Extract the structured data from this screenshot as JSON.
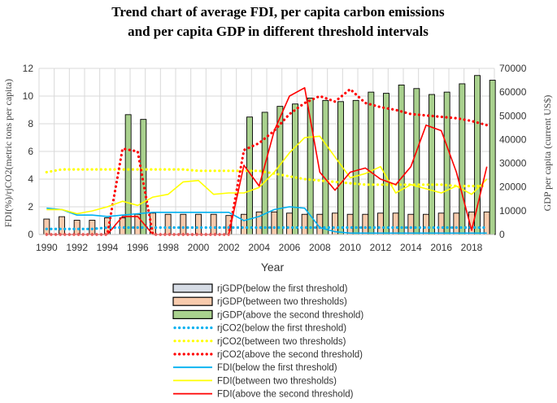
{
  "chart_data": {
    "type": "bar",
    "title_line1": "Trend chart of average FDI, per capita carbon emissions",
    "title_line2": "and per capita GDP in different threshold intervals",
    "xlabel": "Year",
    "ylabel_left": "FDI(%)/rjCO2(metric tons per capita)",
    "ylabel_right": "GDP per capita (current US$)",
    "ylim_left": [
      0,
      12
    ],
    "ylim_right": [
      0,
      70000
    ],
    "yticks_left": [
      "0",
      "2",
      "4",
      "6",
      "8",
      "10",
      "12"
    ],
    "yticks_right": [
      "0",
      "10000",
      "20000",
      "30000",
      "40000",
      "50000",
      "60000",
      "70000"
    ],
    "xticks": [
      "1990",
      "1992",
      "1994",
      "1996",
      "1998",
      "2000",
      "2002",
      "2004",
      "2006",
      "2008",
      "2010",
      "2012",
      "2014",
      "2016",
      "2018"
    ],
    "years": [
      1990,
      1991,
      1992,
      1993,
      1994,
      1995,
      1996,
      1997,
      1998,
      1999,
      2000,
      2001,
      2002,
      2003,
      2004,
      2005,
      2006,
      2007,
      2008,
      2009,
      2010,
      2011,
      2012,
      2013,
      2014,
      2015,
      2016,
      2017,
      2018,
      2019
    ],
    "series": [
      {
        "name": "rjGDP(below the first threshold)",
        "kind": "bar",
        "axis": "right",
        "color": "#d6dce5",
        "values": [
          0,
          0,
          0,
          0,
          0,
          0,
          0,
          0,
          0,
          0,
          0,
          0,
          0,
          0,
          0,
          0,
          0,
          0,
          0,
          0,
          0,
          0,
          0,
          0,
          0,
          0,
          0,
          0,
          0,
          0
        ]
      },
      {
        "name": "rjGDP(between two thresholds)",
        "kind": "bar",
        "axis": "right",
        "color": "#f8cbad",
        "values": [
          6500,
          7500,
          6000,
          6000,
          7000,
          7000,
          8500,
          9000,
          8500,
          8500,
          8500,
          8500,
          8000,
          8500,
          9500,
          9500,
          9000,
          8500,
          8500,
          9000,
          8500,
          8500,
          9000,
          9000,
          8500,
          8500,
          9000,
          9000,
          9500,
          9500
        ]
      },
      {
        "name": "rjGDP(above the second threshold)",
        "kind": "bar",
        "axis": "right",
        "color": "#a9d18e",
        "values": [
          0,
          0,
          0,
          0,
          0,
          50500,
          48500,
          0,
          0,
          0,
          0,
          0,
          0,
          49500,
          51500,
          54000,
          55000,
          57500,
          56500,
          56000,
          56500,
          60000,
          59500,
          63000,
          61500,
          59000,
          60000,
          63500,
          67000,
          65000
        ]
      },
      {
        "name": "rjCO2(below the first threshold)",
        "kind": "dotted",
        "axis": "left",
        "color": "#00b0f0",
        "values": [
          0.4,
          0.4,
          0.4,
          0.4,
          0.5,
          0.5,
          0.5,
          0.5,
          0.5,
          0.5,
          0.5,
          0.5,
          0.5,
          0.5,
          0.5,
          0.5,
          0.5,
          0.5,
          0.5,
          0.5,
          0.5,
          0.5,
          0.5,
          0.5,
          0.5,
          0.5,
          0.5,
          0.5,
          0.5,
          0.5
        ]
      },
      {
        "name": "rjCO2(between two thresholds)",
        "kind": "dotted",
        "axis": "left",
        "color": "#ffff00",
        "values": [
          4.5,
          4.7,
          4.7,
          4.7,
          4.7,
          4.7,
          4.7,
          4.7,
          4.7,
          4.7,
          4.6,
          4.6,
          4.6,
          4.6,
          4.6,
          4.4,
          4.2,
          4.0,
          3.9,
          3.8,
          3.7,
          3.6,
          3.6,
          3.6,
          3.6,
          3.6,
          3.6,
          3.5,
          3.5,
          3.5
        ]
      },
      {
        "name": "rjCO2(above the second threshold)",
        "kind": "dotted",
        "axis": "left",
        "color": "#ff0000",
        "values": [
          0,
          0,
          0,
          0,
          0,
          6.2,
          6.0,
          0,
          0,
          0,
          0,
          0,
          0,
          6.1,
          6.6,
          7.5,
          8.7,
          9.5,
          10.0,
          9.6,
          10.5,
          9.5,
          9.2,
          9.0,
          8.7,
          8.6,
          8.5,
          8.4,
          8.2,
          7.9
        ]
      },
      {
        "name": "FDI(below the first threshold)",
        "kind": "line",
        "axis": "left",
        "color": "#00b0f0",
        "values": [
          1.9,
          1.8,
          1.4,
          1.4,
          1.3,
          1.4,
          1.5,
          1.6,
          1.6,
          1.6,
          1.6,
          1.6,
          1.6,
          1.0,
          1.3,
          1.8,
          2.0,
          1.9,
          0.5,
          0.2,
          0.1,
          0.1,
          0.1,
          0.1,
          0.1,
          0.1,
          0.1,
          0.1,
          0.1,
          0.1
        ]
      },
      {
        "name": "FDI(between two thresholds)",
        "kind": "line",
        "axis": "left",
        "color": "#ffff00",
        "values": [
          1.8,
          1.8,
          1.5,
          1.7,
          2.0,
          2.4,
          2.1,
          2.7,
          2.9,
          3.8,
          3.9,
          2.9,
          3.0,
          3.0,
          3.4,
          4.5,
          5.9,
          7.0,
          7.1,
          5.6,
          4.1,
          4.4,
          4.9,
          3.0,
          3.6,
          3.3,
          3.0,
          3.5,
          2.9,
          4.0
        ]
      },
      {
        "name": "FDI(above the second threshold)",
        "kind": "line",
        "axis": "left",
        "color": "#ff0000",
        "values": [
          0,
          0,
          0,
          0,
          0,
          1.3,
          1.3,
          0,
          0,
          0,
          0,
          0,
          0,
          5.0,
          3.5,
          7.5,
          10.0,
          10.6,
          4.5,
          3.2,
          4.5,
          4.8,
          4.0,
          3.6,
          4.9,
          7.9,
          7.5,
          4.5,
          0.3,
          4.9
        ]
      }
    ]
  },
  "legend": [
    {
      "label": "rjGDP(below the first threshold)",
      "kind": "bar",
      "color": "#d6dce5"
    },
    {
      "label": "rjGDP(between two thresholds)",
      "kind": "bar",
      "color": "#f8cbad"
    },
    {
      "label": "rjGDP(above the second threshold)",
      "kind": "bar",
      "color": "#a9d18e"
    },
    {
      "label": "rjCO2(below the first threshold)",
      "kind": "dotted",
      "color": "#00b0f0"
    },
    {
      "label": "rjCO2(between two thresholds)",
      "kind": "dotted",
      "color": "#ffff00"
    },
    {
      "label": "rjCO2(above the second threshold)",
      "kind": "dotted",
      "color": "#ff0000"
    },
    {
      "label": "FDI(below the first threshold)",
      "kind": "line",
      "color": "#00b0f0"
    },
    {
      "label": "FDI(between two thresholds)",
      "kind": "line",
      "color": "#ffff00"
    },
    {
      "label": "FDI(above the second threshold)",
      "kind": "line",
      "color": "#ff0000"
    }
  ]
}
